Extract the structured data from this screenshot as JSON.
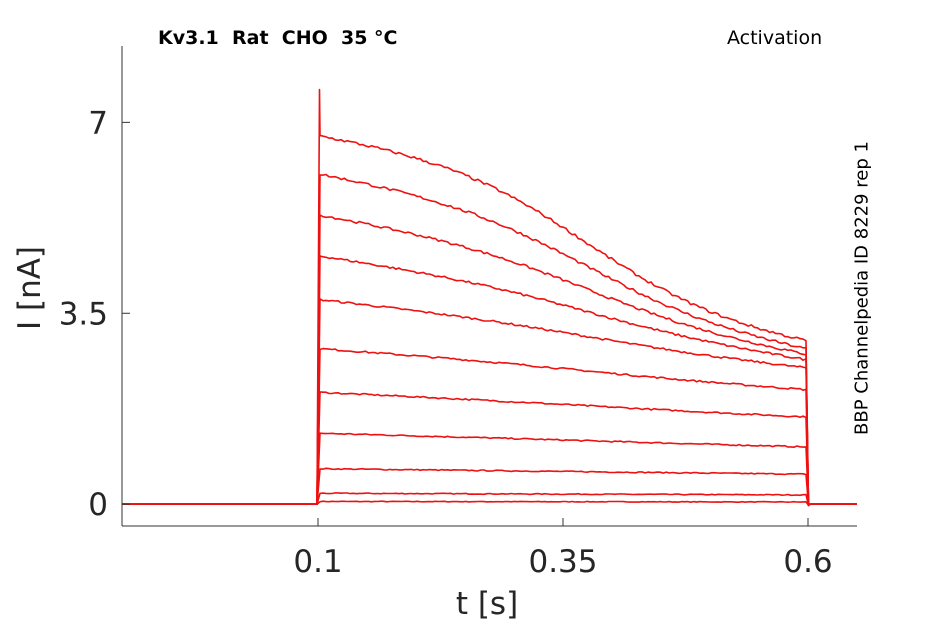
{
  "chart_data": {
    "type": "line",
    "title": "Kv3.1  Rat  CHO  35 °C",
    "protocol": "Activation",
    "side_label": "BBP Channelpedia ID 8229 rep 1",
    "xlabel": "t [s]",
    "ylabel": "I [nA]",
    "xlim": [
      -0.1,
      0.65
    ],
    "ylim": [
      -0.4,
      8.4
    ],
    "xticks": [
      0.1,
      0.35,
      0.6
    ],
    "xtick_labels": [
      "0.1",
      "0.35",
      "0.6"
    ],
    "yticks": [
      0,
      3.5,
      7
    ],
    "ytick_labels": [
      "0",
      "3.5",
      "7"
    ],
    "grid": false,
    "line_color": "#ee1111",
    "pulse": {
      "start": 0.1,
      "end": 0.6,
      "trace_start": -0.1,
      "trace_end": 0.65,
      "peak_transient": 7.6
    },
    "series": [
      {
        "values": [
          [
            0.101,
            0.05
          ],
          [
            0.6,
            0.04
          ]
        ]
      },
      {
        "values": [
          [
            0.101,
            0.2
          ],
          [
            0.6,
            0.17
          ]
        ]
      },
      {
        "values": [
          [
            0.101,
            0.65
          ],
          [
            0.6,
            0.55
          ]
        ]
      },
      {
        "values": [
          [
            0.101,
            1.3
          ],
          [
            0.6,
            1.05
          ]
        ]
      },
      {
        "values": [
          [
            0.101,
            2.05
          ],
          [
            0.6,
            1.6
          ]
        ]
      },
      {
        "values": [
          [
            0.101,
            2.85
          ],
          [
            0.6,
            2.1
          ]
        ]
      },
      {
        "values": [
          [
            0.101,
            3.75
          ],
          [
            0.6,
            2.5
          ]
        ]
      },
      {
        "values": [
          [
            0.101,
            4.55
          ],
          [
            0.6,
            2.65
          ]
        ]
      },
      {
        "values": [
          [
            0.101,
            5.3
          ],
          [
            0.6,
            2.75
          ]
        ]
      },
      {
        "values": [
          [
            0.101,
            6.05
          ],
          [
            0.6,
            2.85
          ]
        ]
      },
      {
        "values": [
          [
            0.101,
            6.75
          ],
          [
            0.6,
            3.0
          ]
        ]
      }
    ]
  }
}
